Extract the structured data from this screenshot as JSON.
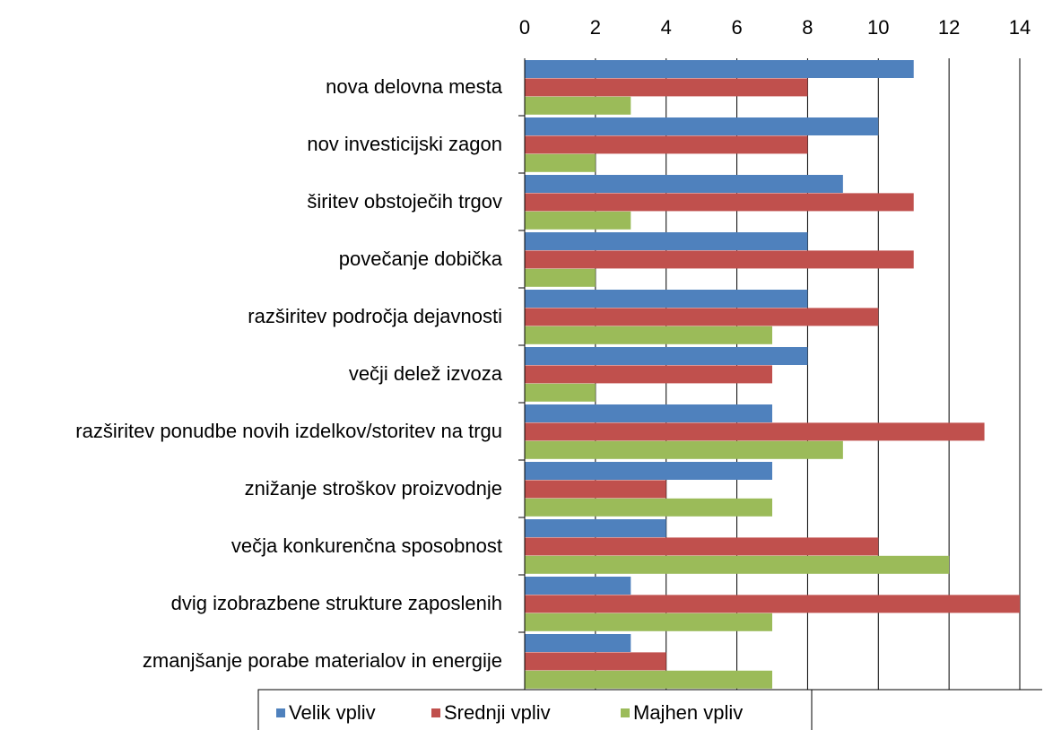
{
  "chart_data": {
    "type": "hbar",
    "categories": [
      "nova delovna mesta",
      "nov investicijski zagon",
      "širitev obstoječih trgov",
      "povečanje dobička",
      "razširitev področja dejavnosti",
      "večji delež izvoza",
      "razširitev ponudbe novih izdelkov/storitev na trgu",
      "znižanje stroškov proizvodnje",
      "večja konkurenčna sposobnost",
      "dvig izobrazbene strukture zaposlenih",
      "zmanjšanje porabe materialov in energije"
    ],
    "series": [
      {
        "name": "Velik vpliv",
        "color": "#4f81bd",
        "values": [
          11,
          10,
          9,
          8,
          8,
          8,
          7,
          7,
          4,
          3,
          3
        ]
      },
      {
        "name": "Srednji vpliv",
        "color": "#c0504d",
        "values": [
          8,
          8,
          11,
          11,
          10,
          7,
          13,
          4,
          10,
          14,
          4
        ]
      },
      {
        "name": "Majhen vpliv",
        "color": "#9bbb59",
        "values": [
          3,
          2,
          3,
          2,
          7,
          2,
          9,
          7,
          12,
          7,
          7
        ]
      }
    ],
    "xlim": [
      0,
      14
    ],
    "xticks": [
      0,
      2,
      4,
      6,
      8,
      10,
      12,
      14
    ],
    "grid": true,
    "legend": "bottom"
  }
}
